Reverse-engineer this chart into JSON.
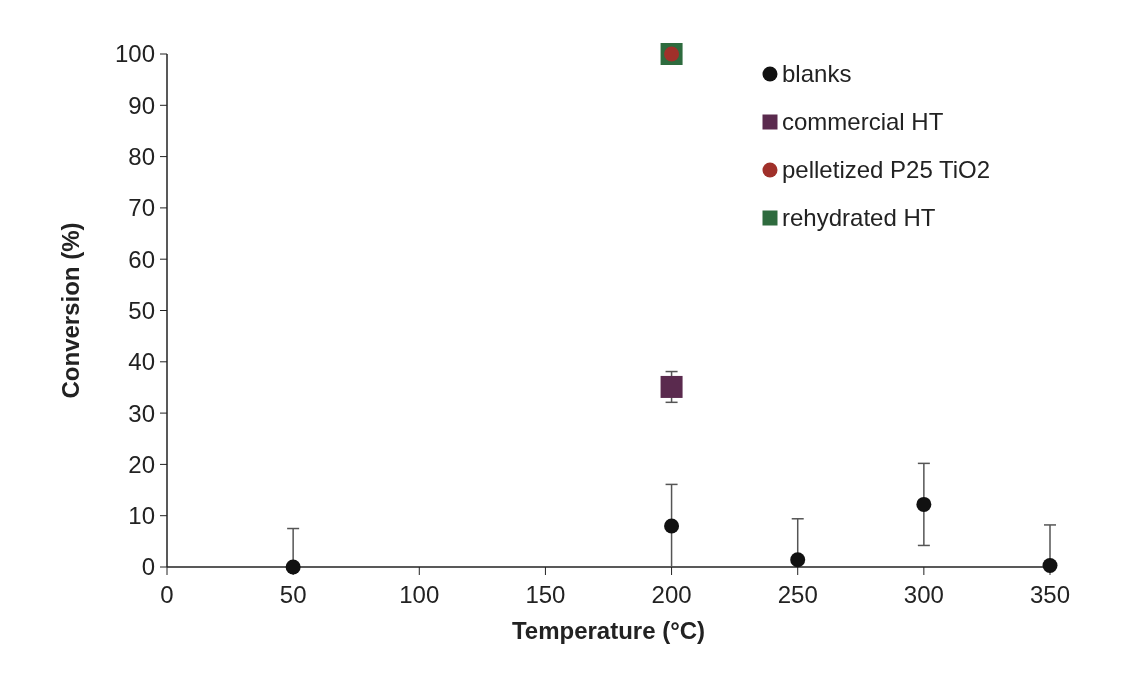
{
  "chart_data": {
    "type": "scatter",
    "xlabel": "Temperature (°C)",
    "ylabel": "Conversion (%)",
    "xlim": [
      0,
      350
    ],
    "xticks": [
      0,
      50,
      100,
      150,
      200,
      250,
      300,
      350
    ],
    "ylim": [
      0,
      100
    ],
    "yticks": [
      0,
      10,
      20,
      30,
      40,
      50,
      60,
      70,
      80,
      90,
      100
    ],
    "grid": false,
    "legend": "top right",
    "series": [
      {
        "name": "blanks",
        "color": "#111111",
        "marker": "circle",
        "x": [
          50,
          200,
          250,
          300,
          350
        ],
        "values": [
          0,
          8,
          1.4,
          12.2,
          0.3
        ],
        "errors": [
          [
            0,
            7.5
          ],
          [
            0,
            16.1
          ],
          [
            0,
            9.4
          ],
          [
            4.2,
            20.2
          ],
          [
            0,
            8.2
          ]
        ]
      },
      {
        "name": "commercial HT",
        "color": "#5a2a4e",
        "marker": "square",
        "x": [
          200
        ],
        "values": [
          35.1
        ],
        "errors": [
          [
            32.1,
            38.1
          ]
        ]
      },
      {
        "name": "pelletized P25 TiO2",
        "color": "#a0302a",
        "marker": "circle",
        "x": [
          200
        ],
        "values": [
          100
        ]
      },
      {
        "name": "rehydrated HT",
        "color": "#2e6b3e",
        "marker": "square",
        "x": [
          200
        ],
        "values": [
          100
        ]
      }
    ]
  }
}
